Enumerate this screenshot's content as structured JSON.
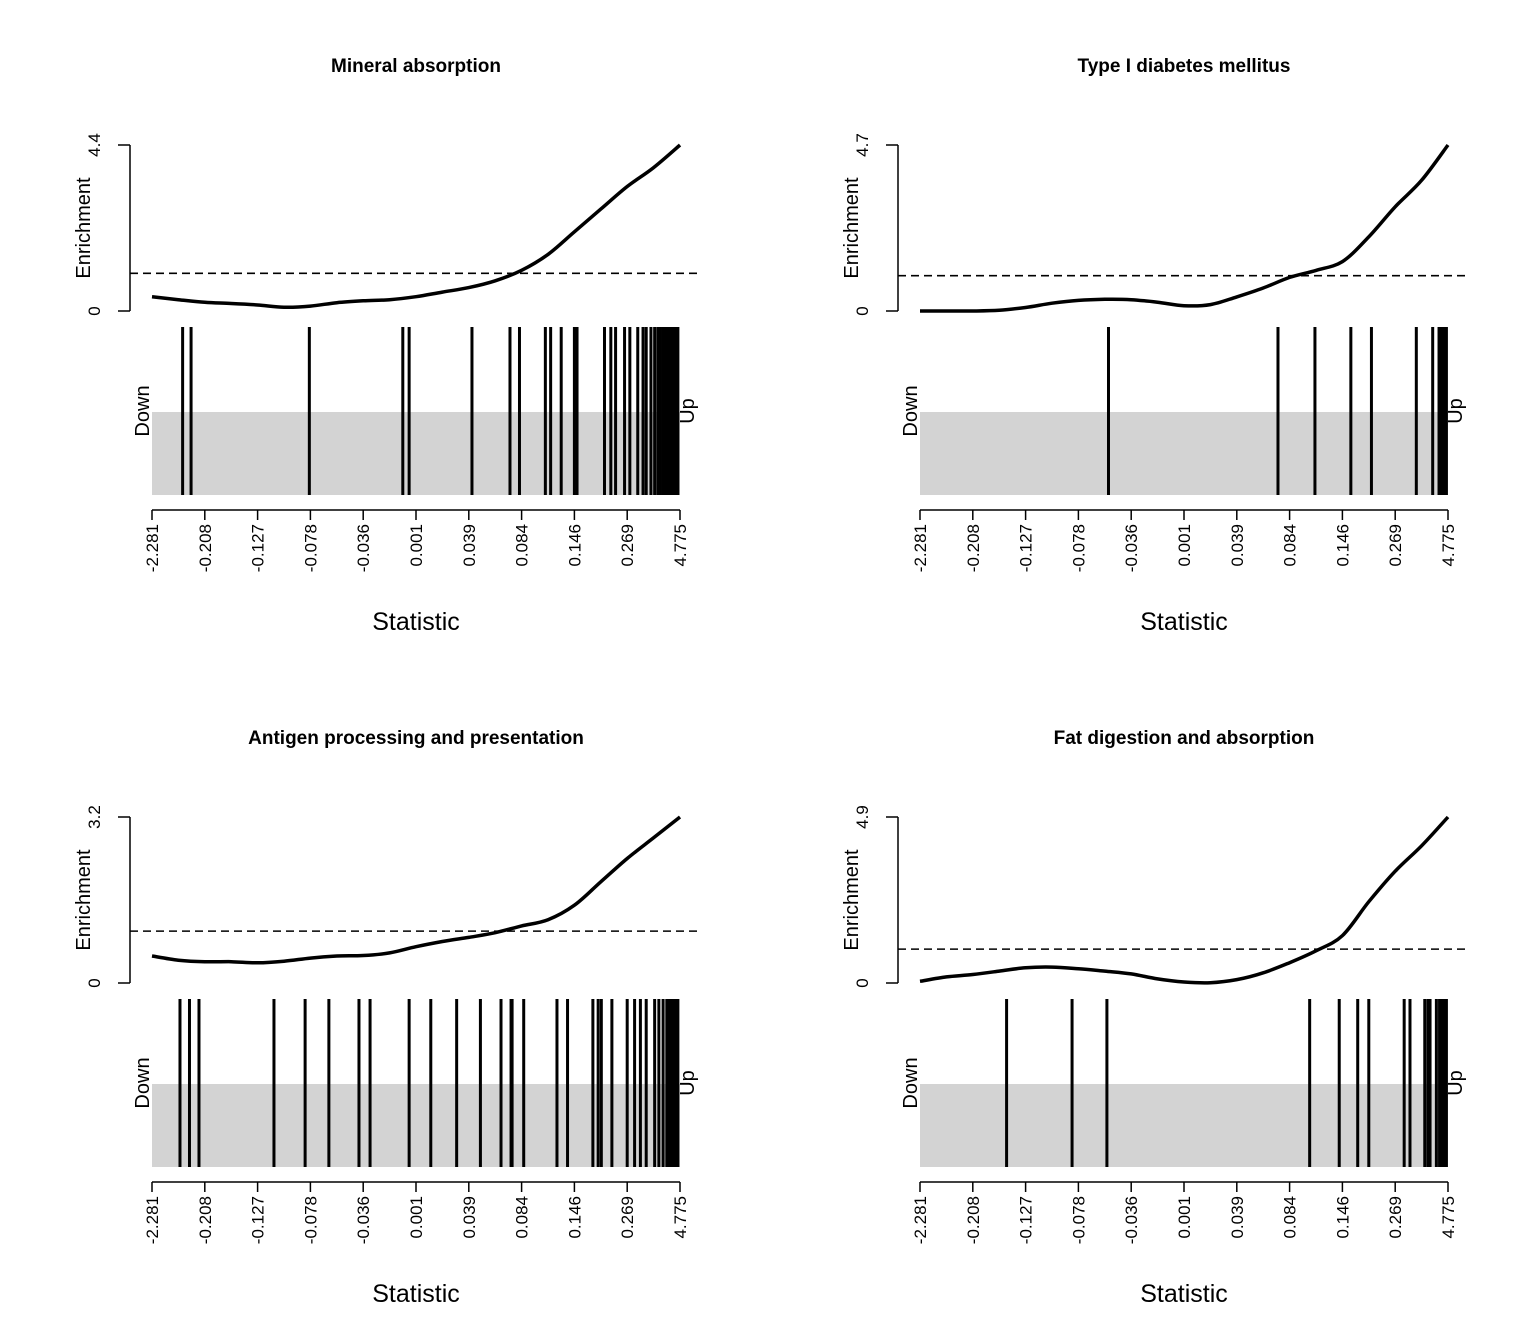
{
  "chart_data": [
    {
      "type": "line",
      "title": "Mineral absorption",
      "xlabel": "Statistic",
      "ylabel": "Enrichment",
      "down_label": "Down",
      "up_label": "Up",
      "y_ticks": [
        "0",
        "4.4"
      ],
      "ylim": [
        0,
        4.4
      ],
      "reference_line": 1,
      "x_tick_labels": [
        "-2.281",
        "-0.208",
        "-0.127",
        "-0.078",
        "-0.036",
        "0.001",
        "0.039",
        "0.084",
        "0.146",
        "0.269",
        "4.775"
      ],
      "xlim": [
        0,
        1
      ],
      "curve": {
        "x": [
          0,
          0.05,
          0.1,
          0.15,
          0.2,
          0.25,
          0.3,
          0.35,
          0.4,
          0.45,
          0.5,
          0.55,
          0.6,
          0.65,
          0.7,
          0.75,
          0.8,
          0.85,
          0.9,
          0.95,
          1.0
        ],
        "y": [
          0.38,
          0.3,
          0.23,
          0.2,
          0.16,
          0.1,
          0.13,
          0.22,
          0.27,
          0.3,
          0.38,
          0.5,
          0.62,
          0.8,
          1.08,
          1.5,
          2.1,
          2.7,
          3.3,
          3.8,
          4.4
        ]
      },
      "barcode": [
        0.058,
        0.074,
        0.298,
        0.475,
        0.487,
        0.606,
        0.678,
        0.696,
        0.745,
        0.755,
        0.775,
        0.8,
        0.805,
        0.857,
        0.869,
        0.878,
        0.895,
        0.905,
        0.92,
        0.93,
        0.936,
        0.945,
        0.952,
        0.958,
        0.963,
        0.968,
        0.972,
        0.976,
        0.98,
        0.984,
        0.988,
        0.992,
        0.996
      ]
    },
    {
      "type": "line",
      "title": "Type I diabetes mellitus",
      "xlabel": "Statistic",
      "ylabel": "Enrichment",
      "down_label": "Down",
      "up_label": "Up",
      "y_ticks": [
        "0",
        "4.7"
      ],
      "ylim": [
        0,
        4.7
      ],
      "reference_line": 1,
      "x_tick_labels": [
        "-2.281",
        "-0.208",
        "-0.127",
        "-0.078",
        "-0.036",
        "0.001",
        "0.039",
        "0.084",
        "0.146",
        "0.269",
        "4.775"
      ],
      "xlim": [
        0,
        1
      ],
      "curve": {
        "x": [
          0,
          0.05,
          0.1,
          0.15,
          0.2,
          0.25,
          0.3,
          0.35,
          0.4,
          0.45,
          0.5,
          0.55,
          0.6,
          0.65,
          0.7,
          0.75,
          0.8,
          0.85,
          0.9,
          0.95,
          1.0
        ],
        "y": [
          0,
          0,
          0,
          0.02,
          0.1,
          0.22,
          0.3,
          0.33,
          0.32,
          0.25,
          0.15,
          0.18,
          0.4,
          0.65,
          0.95,
          1.15,
          1.4,
          2.1,
          2.95,
          3.7,
          4.7
        ]
      },
      "barcode": [
        0.357,
        0.678,
        0.748,
        0.816,
        0.855,
        0.94,
        0.971,
        0.983,
        0.988,
        0.991,
        0.994,
        0.997
      ]
    },
    {
      "type": "line",
      "title": "Antigen processing and presentation",
      "xlabel": "Statistic",
      "ylabel": "Enrichment",
      "down_label": "Down",
      "up_label": "Up",
      "y_ticks": [
        "0",
        "3.2"
      ],
      "ylim": [
        0,
        3.2
      ],
      "reference_line": 1,
      "x_tick_labels": [
        "-2.281",
        "-0.208",
        "-0.127",
        "-0.078",
        "-0.036",
        "0.001",
        "0.039",
        "0.084",
        "0.146",
        "0.269",
        "4.775"
      ],
      "xlim": [
        0,
        1
      ],
      "curve": {
        "x": [
          0,
          0.05,
          0.1,
          0.15,
          0.2,
          0.25,
          0.3,
          0.35,
          0.4,
          0.45,
          0.5,
          0.55,
          0.6,
          0.65,
          0.7,
          0.75,
          0.8,
          0.85,
          0.9,
          0.95,
          1.0
        ],
        "y": [
          0.52,
          0.44,
          0.41,
          0.41,
          0.39,
          0.42,
          0.48,
          0.52,
          0.53,
          0.58,
          0.7,
          0.8,
          0.88,
          0.97,
          1.1,
          1.22,
          1.5,
          1.95,
          2.4,
          2.8,
          3.2
        ]
      },
      "barcode": [
        0.053,
        0.071,
        0.089,
        0.231,
        0.29,
        0.335,
        0.392,
        0.413,
        0.487,
        0.528,
        0.577,
        0.622,
        0.661,
        0.68,
        0.682,
        0.704,
        0.767,
        0.787,
        0.835,
        0.845,
        0.851,
        0.871,
        0.9,
        0.914,
        0.925,
        0.936,
        0.952,
        0.96,
        0.968,
        0.975,
        0.98,
        0.984,
        0.988,
        0.992,
        0.996
      ]
    },
    {
      "type": "line",
      "title": "Fat digestion and absorption",
      "xlabel": "Statistic",
      "ylabel": "Enrichment",
      "down_label": "Down",
      "up_label": "Up",
      "y_ticks": [
        "0",
        "4.9"
      ],
      "ylim": [
        0,
        4.9
      ],
      "reference_line": 1,
      "x_tick_labels": [
        "-2.281",
        "-0.208",
        "-0.127",
        "-0.078",
        "-0.036",
        "0.001",
        "0.039",
        "0.084",
        "0.146",
        "0.269",
        "4.775"
      ],
      "xlim": [
        0,
        1
      ],
      "curve": {
        "x": [
          0,
          0.05,
          0.1,
          0.15,
          0.2,
          0.25,
          0.3,
          0.35,
          0.4,
          0.45,
          0.5,
          0.55,
          0.6,
          0.65,
          0.7,
          0.75,
          0.8,
          0.85,
          0.9,
          0.95,
          1.0
        ],
        "y": [
          0.05,
          0.18,
          0.25,
          0.35,
          0.45,
          0.47,
          0.42,
          0.35,
          0.27,
          0.12,
          0.03,
          0.01,
          0.1,
          0.3,
          0.6,
          0.95,
          1.4,
          2.4,
          3.3,
          4.05,
          4.9
        ]
      },
      "barcode": [
        0.164,
        0.288,
        0.354,
        0.738,
        0.794,
        0.829,
        0.85,
        0.917,
        0.928,
        0.956,
        0.962,
        0.966,
        0.978,
        0.984,
        0.988,
        0.991,
        0.994,
        0.997
      ]
    }
  ]
}
